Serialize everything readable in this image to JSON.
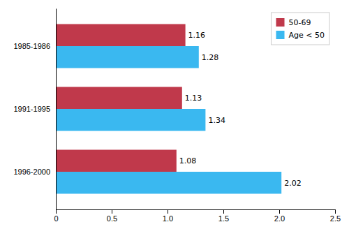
{
  "chart_data": {
    "type": "bar",
    "orientation": "horizontal",
    "categories": [
      "1996-2000",
      "1991-1995",
      "1985-1986"
    ],
    "series": [
      {
        "name": "50-69",
        "color": "#c0394b",
        "values": [
          1.08,
          1.13,
          1.16
        ]
      },
      {
        "name": "Age < 50",
        "color": "#3ab8f0",
        "values": [
          2.02,
          1.34,
          1.28
        ]
      }
    ],
    "xlim": [
      0,
      2.5
    ],
    "xticks": [
      0,
      0.5,
      {
        "value": 1,
        "label": "1.0"
      },
      1.5,
      {
        "value": 2,
        "label": "2.0"
      },
      2.5
    ],
    "data_labels": true,
    "legend": "upper right",
    "grid": false
  }
}
